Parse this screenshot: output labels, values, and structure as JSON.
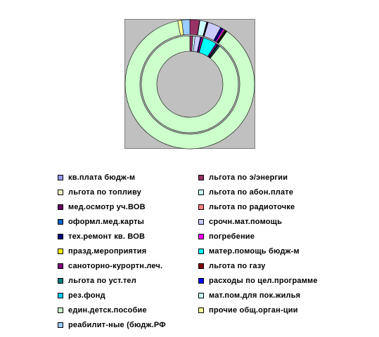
{
  "chart_data": {
    "type": "doughnut",
    "rings": 2,
    "legend_position": "bottom",
    "categories": [
      "кв.плата бюдж-м",
      "льгота по э/энергии",
      "льгота по топливу",
      "льгота по абон.плате",
      "мед.осмотр уч.ВОВ",
      "льгота по радиоточке",
      "оформл.мед.карты",
      "срочн.мат.помощь",
      "тех.ремонт кв. ВОВ",
      "погребение",
      "празд.мероприятия",
      "матер.помощь бюдж-м",
      "саноторно-курортн.леч.",
      "льгота по газу",
      "льгота по уст.тел",
      "расходы по цел.программе",
      "рез.фонд",
      "мат.пом.для пок.жилья",
      "един.детск.пособие",
      "прочие общ.орган-ции",
      "реабилит-ные (бюдж.РФ"
    ],
    "colors": [
      "#9999ff",
      "#993366",
      "#ffffcc",
      "#ccffff",
      "#660066",
      "#ff8080",
      "#0066cc",
      "#ccccff",
      "#000080",
      "#ff00ff",
      "#ffff00",
      "#00ffff",
      "#800080",
      "#800000",
      "#008080",
      "#0000ff",
      "#00ccff",
      "#ccffff",
      "#ccffcc",
      "#ffff99",
      "#99ccff"
    ],
    "series": [
      {
        "values": [
          0.0,
          1.0,
          0.0,
          0.7,
          0.0,
          0.0,
          0.0,
          1.8,
          0.4,
          0.4,
          0.2,
          4.5,
          0.6,
          0.1,
          0.2,
          0.1,
          0.3,
          0.2,
          88.5,
          0.0,
          0.0
        ]
      },
      {
        "values": [
          0.0,
          2.4,
          0.1,
          1.7,
          0.2,
          0.1,
          0.1,
          3.3,
          0.7,
          0.4,
          0.2,
          0.0,
          0.0,
          0.1,
          0.1,
          0.1,
          0.1,
          0.1,
          87.2,
          1.0,
          2.0
        ]
      }
    ]
  }
}
